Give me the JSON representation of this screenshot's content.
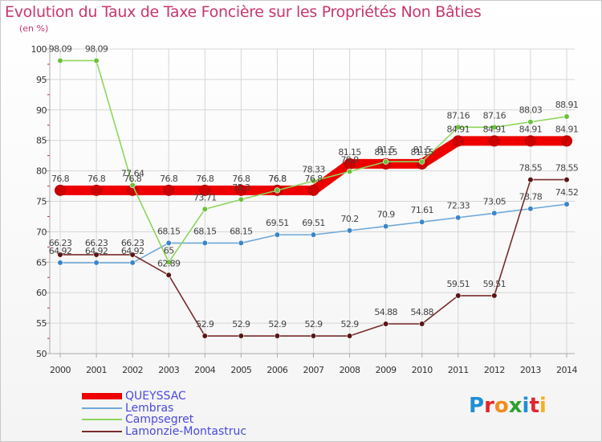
{
  "title": "Evolution du Taux de Taxe Foncière sur les Propriétés Non Bâties",
  "unit": "(en %)",
  "logo": {
    "letters": [
      "P",
      "r",
      "o",
      "x",
      "i",
      "t",
      "i"
    ],
    "colors": [
      "#1e8fd6",
      "#e2262b",
      "#f28c1e",
      "#2f9e2f",
      "#1e8fd6",
      "#e2262b",
      "#f2b21e"
    ]
  },
  "chart_data": {
    "type": "line",
    "title": "Evolution du Taux de Taxe Foncière sur les Propriétés Non Bâties",
    "ylabel": "(en %)",
    "xlabel": "",
    "ylim": [
      50,
      100
    ],
    "yticks": [
      50,
      55,
      60,
      65,
      70,
      75,
      80,
      85,
      90,
      95,
      100
    ],
    "categories": [
      "2000",
      "2001",
      "2002",
      "2003",
      "2004",
      "2005",
      "2006",
      "2007",
      "2008",
      "2009",
      "2010",
      "2011",
      "2012",
      "2013",
      "2014"
    ],
    "series": [
      {
        "name": "QUEYSSAC",
        "color": "#ee0000",
        "marker": "#cc0000",
        "width": "thick",
        "values": [
          76.8,
          76.8,
          76.8,
          76.8,
          76.8,
          76.8,
          76.8,
          76.8,
          81.15,
          81.15,
          81.15,
          84.91,
          84.91,
          84.91,
          84.91
        ],
        "labels": [
          "76.8",
          "76.8",
          "76.8",
          "76.8",
          "76.8",
          "76.8",
          "76.8",
          "76.8",
          "81.15",
          "81.15",
          "81.15",
          "84.91",
          "84.91",
          "84.91",
          "84.91"
        ]
      },
      {
        "name": "Lembras",
        "color": "#6fa8d8",
        "marker": "#3a86c8",
        "width": "thin",
        "values": [
          64.92,
          64.92,
          64.92,
          68.15,
          68.15,
          68.15,
          69.51,
          69.51,
          70.2,
          70.9,
          71.61,
          72.33,
          73.05,
          73.78,
          74.52
        ],
        "labels": [
          "64.92",
          "64.92",
          "64.92",
          "68.15",
          "68.15",
          "68.15",
          "69.51",
          "69.51",
          "70.2",
          "70.9",
          "71.61",
          "72.33",
          "73.05",
          "73.78",
          "74.52"
        ]
      },
      {
        "name": "Campsegret",
        "color": "#8ed65a",
        "marker": "#6cc03a",
        "width": "thin",
        "values": [
          98.09,
          98.09,
          77.64,
          65,
          73.71,
          75.3,
          76.8,
          78.33,
          79.9,
          81.5,
          81.5,
          87.16,
          87.16,
          88.03,
          88.91
        ],
        "labels": [
          "98.09",
          "98.09",
          "77.64",
          "65",
          "73.71",
          "75.3",
          "76.8",
          "78.33",
          "79.9",
          "81.5",
          "81.5",
          "87.16",
          "87.16",
          "88.03",
          "88.91"
        ]
      },
      {
        "name": "Lamonzie-Montastruc",
        "color": "#7a2b2b",
        "marker": "#5a1515",
        "width": "thin",
        "values": [
          66.23,
          66.23,
          66.23,
          62.89,
          52.9,
          52.9,
          52.9,
          52.9,
          52.9,
          54.88,
          54.88,
          59.51,
          59.51,
          78.55,
          78.55
        ],
        "labels": [
          "66.23",
          "66.23",
          "66.23",
          "62.89",
          "52.9",
          "52.9",
          "52.9",
          "52.9",
          "52.9",
          "54.88",
          "54.88",
          "59.51",
          "59.51",
          "78.55",
          "78.55"
        ]
      }
    ],
    "legend": {
      "position": "bottom-left"
    }
  }
}
